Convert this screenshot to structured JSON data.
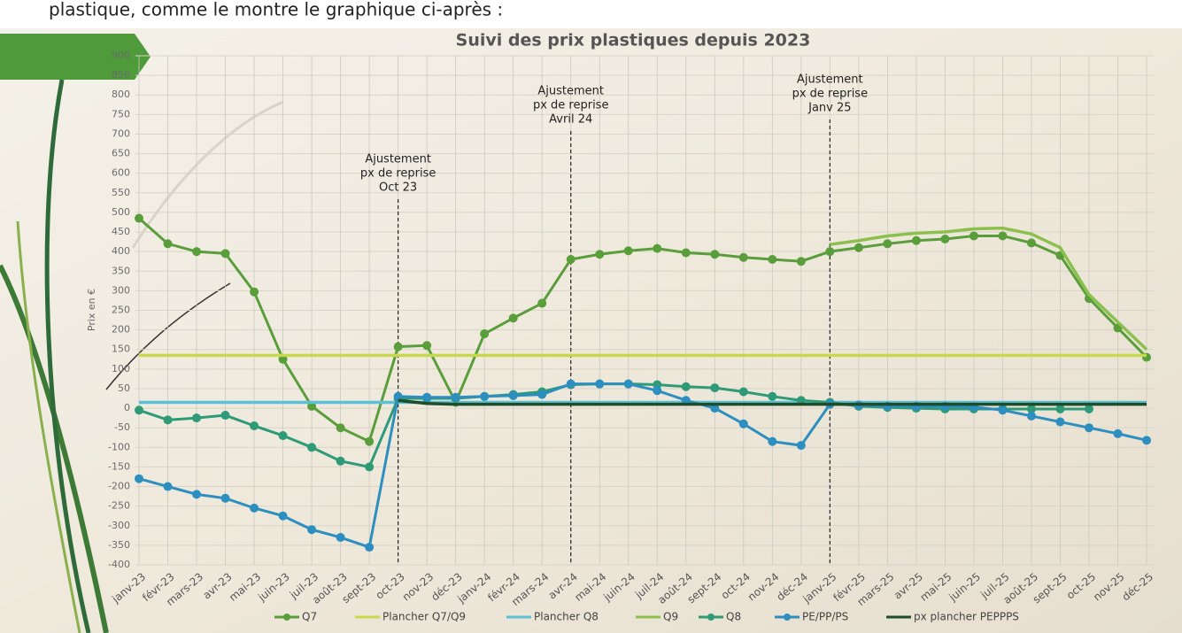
{
  "intro_text": "plastique, comme le montre le graphique ci-après :",
  "chart_data": {
    "type": "line",
    "title": "Suivi des prix plastiques depuis 2023",
    "y_label": "Prix en €",
    "categories": [
      "janv-23",
      "févr-23",
      "mars-23",
      "avr-23",
      "mai-23",
      "juin-23",
      "juil-23",
      "août-23",
      "sept-23",
      "oct-23",
      "nov-23",
      "déc-23",
      "janv-24",
      "févr-24",
      "mars-24",
      "avr-24",
      "mai-24",
      "juin-24",
      "juil-24",
      "août-24",
      "sept-24",
      "oct-24",
      "nov-24",
      "déc-24",
      "janv-25",
      "févr-25",
      "mars-25",
      "avr-25",
      "mai-25",
      "juin-25",
      "juil-25",
      "août-25",
      "sept-25",
      "oct-25",
      "nov-25",
      "déc-25"
    ],
    "series": [
      {
        "name": "Q7",
        "color": "#5a9e3c",
        "markers": true,
        "values": [
          485,
          420,
          400,
          395,
          297,
          125,
          5,
          -50,
          -85,
          157,
          160,
          15,
          190,
          230,
          268,
          380,
          393,
          402,
          408,
          397,
          393,
          385,
          380,
          375,
          400,
          410,
          420,
          428,
          432,
          440,
          440,
          422,
          390,
          280,
          205,
          130
        ]
      },
      {
        "name": "Plancher Q7/Q9",
        "color": "#c5d94a",
        "markers": false,
        "values": [
          135,
          135,
          135,
          135,
          135,
          135,
          135,
          135,
          135,
          135,
          135,
          135,
          135,
          135,
          135,
          135,
          135,
          135,
          135,
          135,
          135,
          135,
          135,
          135,
          135,
          135,
          135,
          135,
          135,
          135,
          135,
          135,
          135,
          135,
          135,
          135
        ]
      },
      {
        "name": "Plancher Q8",
        "color": "#5bc0d6",
        "markers": false,
        "values": [
          15,
          15,
          15,
          15,
          15,
          15,
          15,
          15,
          15,
          15,
          15,
          15,
          15,
          15,
          15,
          15,
          15,
          15,
          15,
          15,
          15,
          15,
          15,
          15,
          15,
          15,
          15,
          15,
          15,
          15,
          15,
          15,
          15,
          15,
          15,
          15
        ]
      },
      {
        "name": "Q9",
        "color": "#8cc04e",
        "markers": false,
        "values": [
          null,
          null,
          null,
          null,
          null,
          null,
          null,
          null,
          null,
          null,
          null,
          null,
          null,
          null,
          null,
          null,
          null,
          null,
          null,
          null,
          null,
          null,
          null,
          null,
          418,
          428,
          440,
          447,
          450,
          458,
          460,
          445,
          410,
          290,
          220,
          150
        ]
      },
      {
        "name": "Q8",
        "color": "#2e9a78",
        "markers": true,
        "values": [
          -5,
          -30,
          -25,
          -18,
          -45,
          -70,
          -100,
          -135,
          -150,
          25,
          25,
          25,
          30,
          35,
          42,
          60,
          62,
          62,
          60,
          55,
          52,
          42,
          30,
          20,
          15,
          5,
          2,
          0,
          -2,
          -2,
          -2,
          -2,
          -2,
          -2,
          null,
          null
        ]
      },
      {
        "name": "PE/PP/PS",
        "color": "#2d8fbf",
        "markers": true,
        "values": [
          -180,
          -200,
          -220,
          -230,
          -255,
          -275,
          -310,
          -330,
          -355,
          30,
          28,
          28,
          30,
          32,
          35,
          62,
          62,
          62,
          45,
          20,
          0,
          -40,
          -85,
          -95,
          10,
          8,
          5,
          5,
          5,
          3,
          -5,
          -20,
          -35,
          -50,
          -65,
          -82
        ]
      },
      {
        "name": "px plancher PEPPPS",
        "color": "#1f4d2a",
        "markers": false,
        "values": [
          null,
          null,
          null,
          null,
          null,
          null,
          null,
          null,
          null,
          20,
          12,
          10,
          10,
          10,
          10,
          10,
          10,
          10,
          10,
          10,
          10,
          10,
          10,
          10,
          10,
          10,
          10,
          10,
          10,
          10,
          10,
          10,
          10,
          10,
          10,
          10
        ]
      }
    ],
    "annotations": [
      {
        "x": "oct-23",
        "text": [
          "Ajustement",
          "px de reprise",
          "Oct 23"
        ]
      },
      {
        "x": "avr-24",
        "text": [
          "Ajustement",
          "px de reprise",
          "Avril 24"
        ]
      },
      {
        "x": "janv-25",
        "text": [
          "Ajustement",
          "px de reprise",
          "Janv 25"
        ]
      }
    ],
    "ylim": [
      -400,
      900
    ],
    "yticks": [
      -400,
      -350,
      -300,
      -250,
      -200,
      -150,
      -100,
      -50,
      0,
      50,
      100,
      150,
      200,
      250,
      300,
      350,
      400,
      450,
      500,
      550,
      600,
      650,
      700,
      750,
      800,
      850,
      900
    ],
    "grid": true
  }
}
